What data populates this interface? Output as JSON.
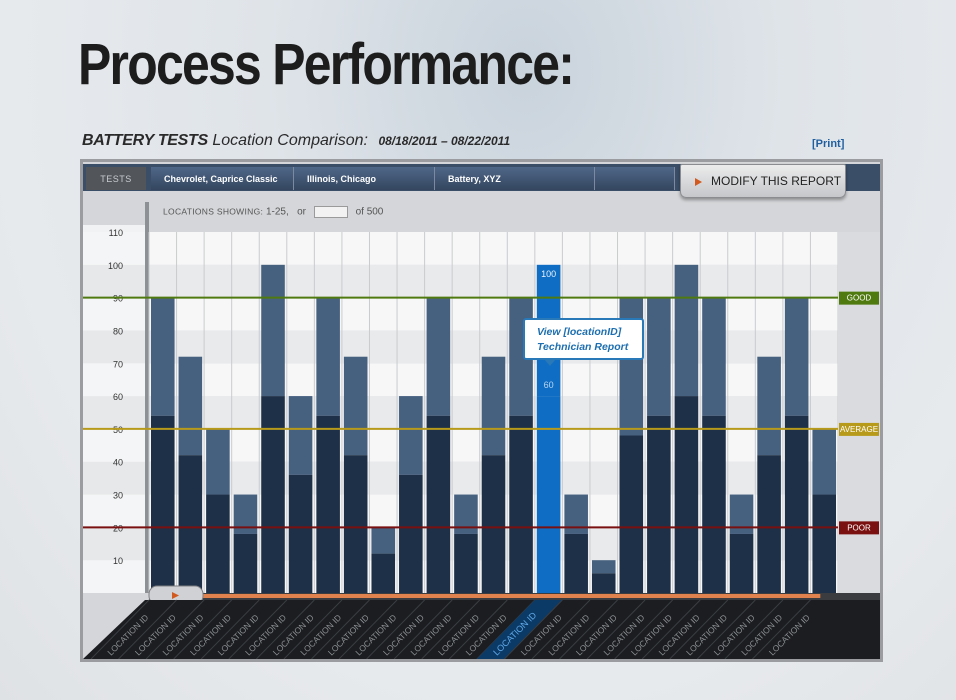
{
  "page": {
    "heading": "Process Performance:",
    "test_type": "BATTERY TESTS",
    "comparison_label": "Location Comparison:",
    "date_range": "08/18/2011 – 08/22/2011",
    "print_label": "[Print]"
  },
  "filters": {
    "tests_label": "TESTS",
    "items": [
      "Chevrolet, Caprice Classic",
      "Illinois, Chicago",
      "Battery, XYZ",
      ""
    ],
    "modify_label": "MODIFY THIS REPORT"
  },
  "locations_showing": {
    "label": "LOCATIONS SHOWING:",
    "range": "1-25,",
    "or_label": "or",
    "input_value": "",
    "of_label": "of",
    "total": "500"
  },
  "tooltip": {
    "line1": "View [locationID]",
    "line2": "Technician Report"
  },
  "colors": {
    "bar_light": "#46607f",
    "bar_dark": "#1e3047",
    "bar_highlight": "#0f6ec4",
    "good": "#4f7a0f",
    "average": "#b89a1b",
    "poor": "#7a1010",
    "slider": "#e0824e"
  },
  "chart_data": {
    "type": "bar",
    "stacked": true,
    "ylim": [
      0,
      110
    ],
    "yticks": [
      10,
      20,
      30,
      40,
      50,
      60,
      70,
      80,
      90,
      100,
      110
    ],
    "categories": [
      "LOCATION ID",
      "LOCATION ID",
      "LOCATION ID",
      "LOCATION ID",
      "LOCATION ID",
      "LOCATION ID",
      "LOCATION ID",
      "LOCATION ID",
      "LOCATION ID",
      "LOCATION ID",
      "LOCATION ID",
      "LOCATION ID",
      "LOCATION ID",
      "LOCATION ID",
      "LOCATION ID",
      "LOCATION ID",
      "LOCATION ID",
      "LOCATION ID",
      "LOCATION ID",
      "LOCATION ID",
      "LOCATION ID",
      "LOCATION ID",
      "LOCATION ID",
      "LOCATION ID",
      "LOCATION ID"
    ],
    "series": [
      {
        "values": [
          54,
          42,
          30,
          18,
          60,
          36,
          54,
          42,
          12,
          36,
          54,
          18,
          42,
          54,
          60,
          18,
          6,
          48,
          54,
          60,
          54,
          18,
          42,
          54,
          30
        ]
      },
      {
        "values": [
          36,
          30,
          20,
          12,
          40,
          24,
          36,
          30,
          8,
          24,
          36,
          12,
          30,
          36,
          40,
          12,
          4,
          42,
          36,
          40,
          36,
          12,
          30,
          36,
          20
        ]
      }
    ],
    "totals": [
      90,
      72,
      50,
      30,
      100,
      60,
      90,
      72,
      20,
      60,
      90,
      30,
      72,
      90,
      100,
      30,
      10,
      90,
      90,
      100,
      90,
      30,
      72,
      90,
      50
    ],
    "highlighted_index": 14,
    "highlight_labels": [
      "100",
      "60"
    ],
    "reference_lines": [
      {
        "label": "GOOD",
        "value": 90
      },
      {
        "label": "AVERAGE",
        "value": 50
      },
      {
        "label": "POOR",
        "value": 20
      }
    ],
    "grid": true,
    "scroll_position": 0.7
  }
}
